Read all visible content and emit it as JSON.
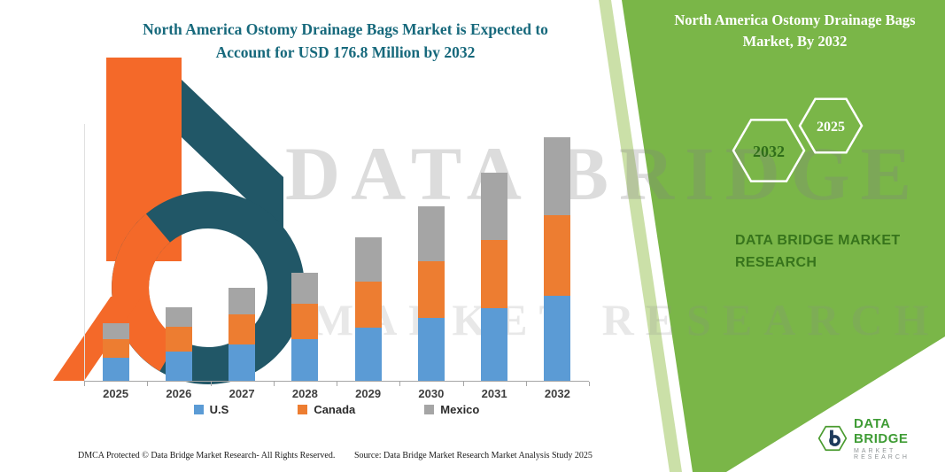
{
  "chart_header": {
    "title_line1": "North America Ostomy Drainage Bags Market is Expected to",
    "title_line2": "Account for USD 176.8 Million by 2032"
  },
  "side_panel": {
    "title": "North America Ostomy Drainage Bags Market, By 2032",
    "hexagons": [
      {
        "year": "2032"
      },
      {
        "year": "2025"
      }
    ],
    "brand_line1": "DATA BRIDGE MARKET",
    "brand_line2": "RESEARCH"
  },
  "watermark": {
    "line1": "DATA BRIDGE",
    "line2": "MARKET RESEARCH"
  },
  "footer": {
    "dmca": "DMCA Protected © Data Bridge Market Research-  All Rights Reserved.",
    "source": "Source: Data Bridge Market Research  Market Analysis Study 2025"
  },
  "brand_logo": {
    "name": "DATA BRIDGE",
    "tagline": "MARKET RESEARCH"
  },
  "colors": {
    "accent_green": "#7ab648",
    "title_teal": "#17697c",
    "us_blue": "#5b9bd5",
    "canada_orange": "#ed7d31",
    "mexico_gray": "#a5a5a5"
  },
  "chart_data": {
    "type": "bar",
    "stacked": true,
    "title": "North America Ostomy Drainage Bags Market is Expected to Account for USD 176.8 Million by 2032",
    "unit": "USD Million",
    "categories": [
      "2025",
      "2026",
      "2027",
      "2028",
      "2029",
      "2030",
      "2031",
      "2032"
    ],
    "series": [
      {
        "name": "U.S",
        "color": "#5b9bd5",
        "values": [
          16.7,
          21.5,
          26.5,
          30.5,
          38.5,
          45.5,
          53.0,
          62.0
        ]
      },
      {
        "name": "Canada",
        "color": "#ed7d31",
        "values": [
          13.5,
          17.5,
          22.0,
          25.5,
          33.5,
          41.0,
          49.0,
          58.0
        ]
      },
      {
        "name": "Mexico",
        "color": "#a5a5a5",
        "values": [
          11.6,
          14.4,
          19.0,
          22.5,
          32.2,
          40.2,
          49.1,
          56.8
        ]
      }
    ],
    "totals": [
      41.8,
      53.4,
      67.5,
      78.5,
      104.2,
      126.7,
      151.1,
      176.8
    ],
    "ylim": [
      0,
      186
    ],
    "grid": false,
    "legend_position": "bottom"
  }
}
